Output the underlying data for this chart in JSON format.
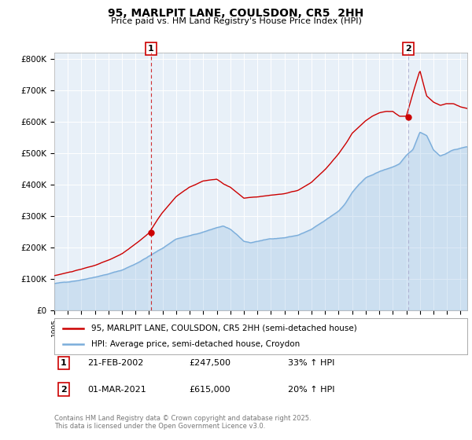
{
  "title": "95, MARLPIT LANE, COULSDON, CR5  2HH",
  "subtitle": "Price paid vs. HM Land Registry's House Price Index (HPI)",
  "ylabel_ticks": [
    "£0",
    "£100K",
    "£200K",
    "£300K",
    "£400K",
    "£500K",
    "£600K",
    "£700K",
    "£800K"
  ],
  "ytick_values": [
    0,
    100000,
    200000,
    300000,
    400000,
    500000,
    600000,
    700000,
    800000
  ],
  "ylim": [
    0,
    820000
  ],
  "xlim_start": 1995.0,
  "xlim_end": 2025.5,
  "legend_line1": "95, MARLPIT LANE, COULSDON, CR5 2HH (semi-detached house)",
  "legend_line2": "HPI: Average price, semi-detached house, Croydon",
  "sale1_date": "21-FEB-2002",
  "sale1_price": "£247,500",
  "sale1_hpi": "33% ↑ HPI",
  "sale2_date": "01-MAR-2021",
  "sale2_price": "£615,000",
  "sale2_hpi": "20% ↑ HPI",
  "footnote": "Contains HM Land Registry data © Crown copyright and database right 2025.\nThis data is licensed under the Open Government Licence v3.0.",
  "red_color": "#cc0000",
  "blue_color": "#7aaddb",
  "blue_fill": "#ddeeff",
  "vline_color": "#cc0000",
  "bg_color": "#ffffff",
  "chart_bg": "#e8f0f8",
  "grid_color": "#ffffff",
  "sale1_x": 2002.13,
  "sale2_x": 2021.17,
  "sale1_y": 247500,
  "sale2_y": 615000
}
